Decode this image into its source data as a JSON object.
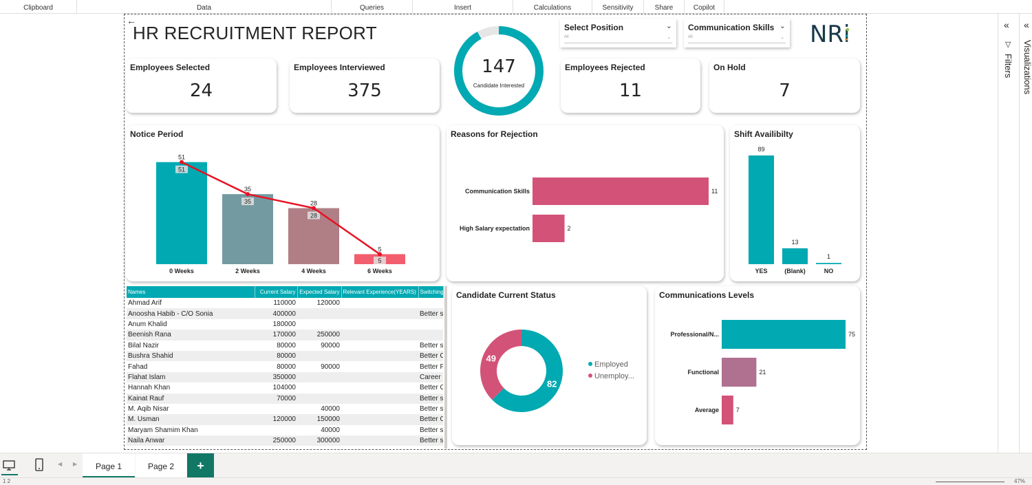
{
  "ribbon": {
    "groups": [
      "Clipboard",
      "Data",
      "Queries",
      "Insert",
      "Calculations",
      "Sensitivity",
      "Share",
      "Copilot"
    ]
  },
  "report": {
    "title": "HR RECRUITMENT REPORT",
    "logo_text": "NRi"
  },
  "slicers": [
    {
      "title": "Select Position",
      "value": "All"
    },
    {
      "title": "Communication Skills",
      "value": "All"
    }
  ],
  "kpis": {
    "selected": {
      "label": "Employees Selected",
      "value": "24"
    },
    "interviewed": {
      "label": "Employees Interviewed",
      "value": "375"
    },
    "rejected": {
      "label": "Employees Rejected",
      "value": "11"
    },
    "on_hold": {
      "label": "On Hold",
      "value": "7"
    }
  },
  "gauge": {
    "value": "147",
    "label": "Candidate Interested",
    "fill_fraction": 0.92,
    "color": "#01a9b2"
  },
  "chart_data": [
    {
      "type": "bar",
      "title": "Notice Period",
      "categories": [
        "0 Weeks",
        "2 Weeks",
        "4 Weeks",
        "6 Weeks"
      ],
      "values": [
        51,
        35,
        28,
        5
      ],
      "colors": [
        "#01a9b2",
        "#739aa0",
        "#b07f86",
        "#f25e6d"
      ],
      "line_overlay": {
        "values": [
          51,
          35,
          28,
          5
        ],
        "color": "#e81123"
      },
      "ylim": [
        0,
        55
      ]
    },
    {
      "type": "bar",
      "orientation": "horizontal",
      "title": "Reasons for Rejection",
      "categories": [
        "Communication Skills",
        "High Salary expectation"
      ],
      "values": [
        11,
        2
      ],
      "color": "#d35278",
      "xlim": [
        0,
        11
      ]
    },
    {
      "type": "bar",
      "title": "Shift Availibilty",
      "categories": [
        "YES",
        "(Blank)",
        "NO"
      ],
      "values": [
        89,
        13,
        1
      ],
      "color": "#01a9b2",
      "ylim": [
        0,
        89
      ]
    },
    {
      "type": "pie",
      "donut": true,
      "title": "Candidate Current Status",
      "categories": [
        "Employed",
        "Unemploy..."
      ],
      "values": [
        82,
        49
      ],
      "colors": [
        "#01a9b2",
        "#d35278"
      ],
      "legend": "right"
    },
    {
      "type": "bar",
      "orientation": "horizontal",
      "title": "Communications Levels",
      "categories": [
        "Professional/N...",
        "Functional",
        "Average"
      ],
      "values": [
        75,
        21,
        7
      ],
      "colors": [
        "#01a9b2",
        "#b07090",
        "#d35278"
      ],
      "xlim": [
        0,
        75
      ]
    }
  ],
  "table": {
    "columns": [
      "Names",
      "Current Salary",
      "Expected Salary",
      "Relevant Experience(YEARS)",
      "Switching"
    ],
    "rows": [
      [
        "Ahmad Arif",
        "110000",
        "120000",
        "",
        ""
      ],
      [
        "Anoosha Habib - C/O Sonia",
        "400000",
        "",
        "",
        "Better s"
      ],
      [
        "Anum Khalid",
        "180000",
        "",
        "",
        ""
      ],
      [
        "Beenish Rana",
        "170000",
        "250000",
        "",
        ""
      ],
      [
        "Bilal Nazir",
        "80000",
        "90000",
        "",
        "Better s"
      ],
      [
        "Bushra Shahid",
        "80000",
        "",
        "",
        "Better C"
      ],
      [
        "Fahad",
        "80000",
        "90000",
        "",
        "Better F"
      ],
      [
        "Flahat Islam",
        "350000",
        "",
        "",
        "Career"
      ],
      [
        "Hannah Khan",
        "104000",
        "",
        "",
        "Better C"
      ],
      [
        "Kainat Rauf",
        "70000",
        "",
        "",
        "Better s"
      ],
      [
        "M. Aqib Nisar",
        "",
        "40000",
        "",
        "Better s"
      ],
      [
        "M. Usman",
        "120000",
        "150000",
        "",
        "Better C"
      ],
      [
        "Maryam Shamim Khan",
        "",
        "40000",
        "",
        "Better s"
      ],
      [
        "Naila Anwar",
        "250000",
        "300000",
        "",
        "Better s"
      ]
    ]
  },
  "panes": {
    "filters": "Filters",
    "visualizations": "Visualizations"
  },
  "tabs": [
    "Page 1",
    "Page 2"
  ],
  "add_tab": "+",
  "status": {
    "left": "1 2",
    "zoom": "47%"
  }
}
